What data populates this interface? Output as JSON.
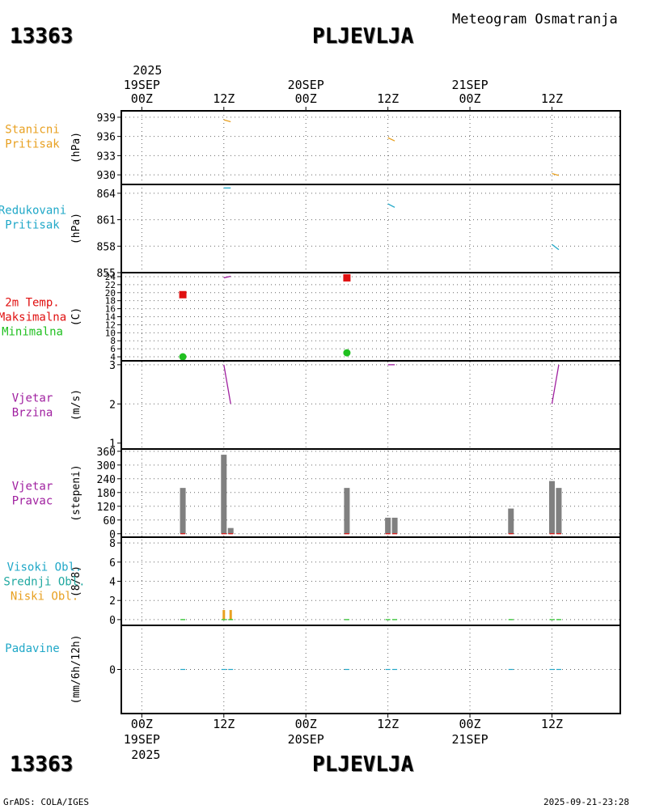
{
  "header": {
    "station_id": "13363",
    "station_name": "PLJEVLJA",
    "subtitle": "Meteogram Osmatranja"
  },
  "footer": {
    "credit": "GrADS: COLA/IGES",
    "timestamp": "2025-09-21-23:28"
  },
  "colors": {
    "orange": "#e8a020",
    "cyan": "#20a8c8",
    "red": "#e01010",
    "green": "#20c020",
    "purple": "#a020a0",
    "teal": "#20a8a0",
    "gray": "#808080"
  },
  "chart_data": {
    "type": "meteogram",
    "x_axis": {
      "top_year": "2025",
      "bottom_year": "2025",
      "ticks": [
        {
          "hour": 0,
          "label": "00Z",
          "date": "19SEP"
        },
        {
          "hour": 12,
          "label": "12Z",
          "date": ""
        },
        {
          "hour": 24,
          "label": "00Z",
          "date": "20SEP"
        },
        {
          "hour": 36,
          "label": "12Z",
          "date": ""
        },
        {
          "hour": 48,
          "label": "00Z",
          "date": "21SEP"
        },
        {
          "hour": 60,
          "label": "12Z",
          "date": ""
        }
      ],
      "range": [
        -3,
        70
      ]
    },
    "panels": [
      {
        "id": "station-pressure",
        "labels": [
          {
            "text": "Stanicni",
            "color": "#e8a020"
          },
          {
            "text": "Pritisak",
            "color": "#e8a020"
          }
        ],
        "unit": "(hPa)",
        "ylim": [
          928.5,
          940
        ],
        "yticks": [
          939,
          936,
          933,
          930
        ],
        "gridlines": [
          939,
          936,
          933,
          930
        ],
        "lines": [
          {
            "color": "#e8a020",
            "points": [
              [
                12,
                938.6
              ],
              [
                13,
                938.3
              ]
            ]
          },
          {
            "color": "#e8a020",
            "points": [
              [
                36,
                935.8
              ],
              [
                37,
                935.3
              ]
            ]
          },
          {
            "color": "#e8a020",
            "points": [
              [
                60,
                930.2
              ],
              [
                61,
                929.9
              ]
            ]
          }
        ]
      },
      {
        "id": "reduced-pressure",
        "labels": [
          {
            "text": "Redukovani",
            "color": "#20a8c8"
          },
          {
            "text": "Pritisak",
            "color": "#20a8c8"
          }
        ],
        "unit": "(hPa)",
        "ylim": [
          855,
          865
        ],
        "yticks": [
          864,
          861,
          858,
          855
        ],
        "gridlines": [
          864,
          861,
          858
        ],
        "lines": [
          {
            "color": "#20a8c8",
            "points": [
              [
                12,
                864.6
              ],
              [
                13,
                864.6
              ]
            ]
          },
          {
            "color": "#20a8c8",
            "points": [
              [
                36,
                862.8
              ],
              [
                37,
                862.4
              ]
            ]
          },
          {
            "color": "#20a8c8",
            "points": [
              [
                60,
                858.2
              ],
              [
                61,
                857.6
              ]
            ]
          }
        ]
      },
      {
        "id": "temperature",
        "labels": [
          {
            "text": "2m Temp.",
            "color": "#e01010"
          },
          {
            "text": "Maksimalna",
            "color": "#e01010"
          },
          {
            "text": "Minimalna",
            "color": "#20c020"
          }
        ],
        "unit": "(C)",
        "ylim": [
          3,
          25
        ],
        "yticks": [
          4,
          6,
          8,
          10,
          12,
          14,
          16,
          18,
          20,
          22,
          24
        ],
        "gridlines": [
          4,
          6,
          8,
          10,
          12,
          14,
          16,
          18,
          20,
          22,
          24
        ],
        "lines": [
          {
            "color": "#a020a0",
            "points": [
              [
                12,
                23.7
              ],
              [
                13,
                24.1
              ]
            ]
          }
        ],
        "max_points": [
          {
            "hour": 6,
            "value": 19.5
          },
          {
            "hour": 30,
            "value": 23.7
          }
        ],
        "min_points": [
          {
            "hour": 6,
            "value": 4.0
          },
          {
            "hour": 30,
            "value": 5.0
          }
        ]
      },
      {
        "id": "wind-speed",
        "labels": [
          {
            "text": "Vjetar",
            "color": "#a020a0"
          },
          {
            "text": "Brzina",
            "color": "#a020a0"
          }
        ],
        "unit": "(m/s)",
        "ylim": [
          0.85,
          3.1
        ],
        "yticks": [
          1,
          2,
          3
        ],
        "gridlines": [
          2,
          3
        ],
        "lines": [
          {
            "color": "#a020a0",
            "points": [
              [
                12,
                3.0
              ],
              [
                13,
                2.0
              ]
            ]
          },
          {
            "color": "#a020a0",
            "points": [
              [
                36,
                3.0
              ],
              [
                37,
                3.0
              ]
            ]
          },
          {
            "color": "#a020a0",
            "points": [
              [
                60,
                2.0
              ],
              [
                61,
                3.0
              ]
            ]
          }
        ]
      },
      {
        "id": "wind-direction",
        "labels": [
          {
            "text": "Vjetar",
            "color": "#a020a0"
          },
          {
            "text": "Pravac",
            "color": "#a020a0"
          }
        ],
        "unit": "(stepeni)",
        "ylim": [
          -15,
          370
        ],
        "yticks": [
          0,
          60,
          120,
          180,
          240,
          300,
          360
        ],
        "gridlines": [
          0,
          60,
          120,
          180,
          240,
          300,
          360
        ],
        "bars": [
          {
            "hour": 6,
            "value": 200
          },
          {
            "hour": 12,
            "value": 345
          },
          {
            "hour": 13,
            "value": 25
          },
          {
            "hour": 30,
            "value": 200
          },
          {
            "hour": 36,
            "value": 70
          },
          {
            "hour": 37,
            "value": 70
          },
          {
            "hour": 54,
            "value": 110
          },
          {
            "hour": 60,
            "value": 230
          },
          {
            "hour": 61,
            "value": 200
          }
        ]
      },
      {
        "id": "cloud-cover",
        "labels": [
          {
            "text": "Visoki Obl.",
            "color": "#20a8c8"
          },
          {
            "text": "Srednji Obl.",
            "color": "#20a8a0"
          },
          {
            "text": "Niski Obl.",
            "color": "#e8a020"
          }
        ],
        "unit": "(8/8)",
        "ylim": [
          -0.6,
          8.6
        ],
        "yticks": [
          0,
          2,
          4,
          6,
          8
        ],
        "gridlines": [
          0,
          2,
          4,
          6,
          8
        ],
        "low_cloud_marks": [
          {
            "hour": 12,
            "value": 1
          },
          {
            "hour": 13,
            "value": 1
          }
        ]
      },
      {
        "id": "precipitation",
        "labels": [
          {
            "text": "Padavine",
            "color": "#20a8c8"
          }
        ],
        "unit": "(mm/6h/12h)",
        "ylim": [
          -2,
          2
        ],
        "yticks": [
          0
        ],
        "gridlines": [
          0
        ]
      }
    ]
  }
}
